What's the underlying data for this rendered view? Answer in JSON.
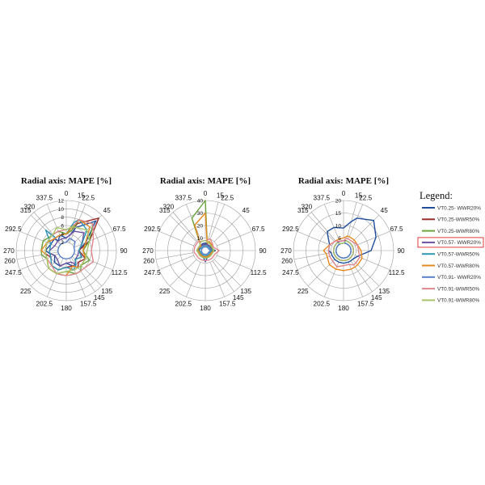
{
  "chart_data": [
    {
      "type": "radar",
      "title": "Radial axis: MAPE [%]",
      "rmax": 12,
      "radial_ticks": [
        "2",
        "4",
        "6",
        "8",
        "10",
        "12"
      ],
      "angles": [
        "0",
        "15",
        "22.5",
        "45",
        "67.5",
        "90",
        "112.5",
        "135",
        "145",
        "157.5",
        "180",
        "202.5",
        "225",
        "247.5",
        "260",
        "270",
        "292.5",
        "315",
        "320",
        "337.5"
      ],
      "series": [
        {
          "values": [
            3,
            4,
            6,
            10,
            5,
            3,
            4,
            3,
            4,
            4,
            3,
            4,
            4,
            3,
            4,
            5,
            4,
            4,
            3,
            4
          ]
        },
        {
          "values": [
            4,
            5,
            7,
            11,
            6,
            3,
            5,
            4,
            5,
            4,
            4,
            5,
            5,
            4,
            5,
            5,
            5,
            4,
            4,
            4
          ]
        },
        {
          "values": [
            4,
            5,
            8,
            9,
            6,
            4,
            6,
            5,
            6,
            6,
            5,
            6,
            6,
            5,
            6,
            6,
            6,
            5,
            5,
            5
          ]
        },
        {
          "values": [
            3,
            4,
            5,
            6,
            4,
            3,
            3,
            3,
            4,
            3,
            3,
            4,
            3,
            3,
            4,
            4,
            3,
            3,
            3,
            3
          ]
        },
        {
          "values": [
            4,
            7,
            8,
            7,
            4,
            3,
            4,
            3,
            4,
            5,
            4,
            5,
            5,
            4,
            4,
            4,
            4,
            7,
            4,
            4
          ]
        },
        {
          "values": [
            4,
            6,
            8,
            8,
            5,
            4,
            5,
            5,
            5,
            4,
            6,
            6,
            6,
            5,
            5,
            6,
            5,
            4,
            4,
            4
          ]
        },
        {
          "values": [
            2,
            3,
            3,
            3,
            2,
            2,
            2,
            2,
            2,
            2,
            2,
            2,
            2,
            2,
            2,
            2,
            2,
            2,
            2,
            2
          ]
        },
        {
          "values": [
            5,
            6,
            8,
            9,
            7,
            6,
            7,
            6,
            6,
            6,
            6,
            6,
            5,
            5,
            5,
            5,
            5,
            5,
            5,
            5
          ]
        },
        {
          "values": [
            5,
            6,
            6,
            7,
            6,
            5,
            5,
            5,
            5,
            5,
            5,
            6,
            6,
            5,
            5,
            5,
            5,
            5,
            5,
            6
          ]
        }
      ]
    },
    {
      "type": "radar",
      "title": "Radial axis: MAPE [%]",
      "rmax": 40,
      "radial_ticks": [
        "10",
        "20",
        "30",
        "40"
      ],
      "angles": [
        "0",
        "15",
        "22.5",
        "45",
        "67.5",
        "90",
        "112.5",
        "135",
        "145",
        "157.5",
        "180",
        "202.5",
        "225",
        "247.5",
        "260",
        "270",
        "292.5",
        "315",
        "320",
        "337.5"
      ],
      "series": [
        {
          "values": [
            6,
            6,
            5,
            5,
            5,
            8,
            5,
            5,
            5,
            5,
            9,
            5,
            5,
            5,
            6,
            7,
            6,
            5,
            5,
            6
          ]
        },
        {
          "values": [
            5,
            5,
            5,
            5,
            5,
            5,
            5,
            5,
            5,
            5,
            5,
            5,
            5,
            5,
            5,
            5,
            6,
            5,
            5,
            5
          ]
        },
        {
          "values": [
            40,
            6,
            8,
            6,
            5,
            6,
            5,
            5,
            5,
            5,
            5,
            5,
            5,
            5,
            5,
            6,
            6,
            6,
            6,
            28
          ]
        },
        {
          "values": [
            5,
            5,
            5,
            5,
            5,
            5,
            5,
            5,
            5,
            5,
            5,
            5,
            5,
            5,
            5,
            5,
            5,
            5,
            5,
            5
          ]
        },
        {
          "values": [
            4,
            4,
            4,
            4,
            4,
            5,
            4,
            4,
            4,
            4,
            4,
            4,
            4,
            4,
            4,
            5,
            4,
            4,
            4,
            4
          ]
        },
        {
          "values": [
            30,
            6,
            8,
            7,
            6,
            7,
            5,
            5,
            5,
            5,
            5,
            5,
            5,
            5,
            5,
            6,
            6,
            5,
            6,
            22
          ]
        },
        {
          "values": [
            3,
            3,
            3,
            3,
            3,
            4,
            3,
            3,
            3,
            3,
            3,
            3,
            3,
            3,
            3,
            3,
            3,
            3,
            3,
            3
          ]
        },
        {
          "values": [
            8,
            9,
            10,
            8,
            7,
            11,
            8,
            8,
            8,
            8,
            8,
            8,
            8,
            8,
            9,
            9,
            9,
            9,
            9,
            8
          ]
        },
        {
          "values": [
            8,
            7,
            7,
            6,
            6,
            7,
            6,
            6,
            6,
            6,
            6,
            6,
            6,
            6,
            6,
            7,
            6,
            6,
            7,
            8
          ]
        }
      ]
    },
    {
      "type": "radar",
      "title": "Radial axis: MAPE [%]",
      "rmax": 20,
      "radial_ticks": [
        "5",
        "10",
        "15",
        "20"
      ],
      "angles": [
        "0",
        "15",
        "22.5",
        "45",
        "67.5",
        "90",
        "112.5",
        "135",
        "145",
        "157.5",
        "180",
        "202.5",
        "225",
        "247.5",
        "260",
        "270",
        "292.5",
        "315",
        "320",
        "337.5"
      ],
      "series": [
        {
          "values": [
            9,
            12,
            14,
            17,
            14,
            11,
            6,
            5,
            5,
            5,
            5,
            5,
            5,
            5,
            5,
            6,
            6,
            9,
            10,
            10
          ]
        },
        {
          "values": [
            4,
            4,
            4,
            4,
            4,
            4,
            4,
            4,
            4,
            4,
            4,
            4,
            4,
            4,
            4,
            4,
            4,
            4,
            4,
            4
          ]
        },
        {
          "values": [
            3,
            3,
            3,
            3,
            3,
            3,
            3,
            3,
            3,
            3,
            3,
            3,
            3,
            3,
            3,
            3,
            3,
            3,
            3,
            3
          ]
        },
        {
          "values": [
            4,
            4,
            4,
            4,
            4,
            4,
            4,
            4,
            4,
            4,
            4,
            4,
            4,
            4,
            4,
            4,
            4,
            4,
            4,
            4
          ]
        },
        {
          "values": [
            3,
            3,
            3,
            3,
            3,
            3,
            3,
            3,
            3,
            3,
            3,
            3,
            3,
            3,
            3,
            3,
            3,
            3,
            3,
            3
          ]
        },
        {
          "values": [
            5,
            6,
            6,
            6,
            6,
            7,
            8,
            8,
            8,
            8,
            8,
            8,
            8,
            7,
            7,
            8,
            6,
            5,
            5,
            5
          ]
        },
        {
          "values": [
            3,
            3,
            3,
            3,
            3,
            3,
            3,
            3,
            3,
            3,
            3,
            3,
            3,
            3,
            3,
            3,
            3,
            3,
            3,
            3
          ]
        },
        {
          "values": [
            4,
            5,
            5,
            5,
            6,
            6,
            7,
            7,
            7,
            6,
            6,
            7,
            6,
            6,
            6,
            6,
            6,
            5,
            5,
            4
          ]
        },
        {
          "values": [
            3,
            4,
            4,
            4,
            4,
            4,
            4,
            4,
            4,
            4,
            4,
            4,
            4,
            4,
            4,
            4,
            4,
            4,
            4,
            3
          ]
        }
      ]
    }
  ],
  "legend": {
    "title": "Legend:",
    "items": [
      {
        "label": "VT0.25- WWR20%",
        "color": "#1f4e9c"
      },
      {
        "label": "VT0.25-WWR50%",
        "color": "#9b2a2a"
      },
      {
        "label": "VT0.25-WWR80%",
        "color": "#6aa43b"
      },
      {
        "label": "VT0.57- WWR20%",
        "color": "#6b4fa0",
        "highlight": true
      },
      {
        "label": "VT0.57-WWR50%",
        "color": "#2f96b4"
      },
      {
        "label": "VT0.57-WWR80%",
        "color": "#e68a1f"
      },
      {
        "label": "VT0.91- WWR20%",
        "color": "#5b7fc9"
      },
      {
        "label": "VT0.91-WWR50%",
        "color": "#e0868c"
      },
      {
        "label": "VT0.91-WWR80%",
        "color": "#a8c46a"
      }
    ]
  },
  "colors": {
    "grid": "#9a9a9a",
    "highlight_box": "#e23b3b"
  }
}
